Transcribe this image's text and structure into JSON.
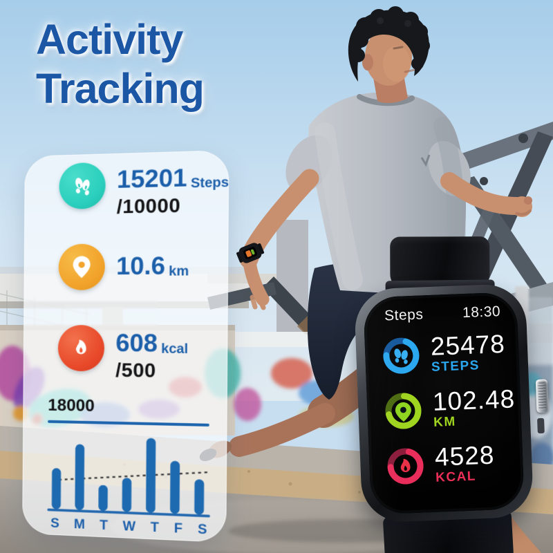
{
  "title": {
    "line1": "Activity",
    "line2": "Tracking",
    "color": "#1b57a5"
  },
  "stats_card": {
    "items": [
      {
        "icon": "footprints-icon",
        "value": "15201",
        "unit": "Steps",
        "sub": "/10000",
        "icon_color": "#2bcfbd"
      },
      {
        "icon": "location-pin-icon",
        "value": "10.6",
        "unit": "km",
        "sub": "",
        "icon_color": "#f2a42c"
      },
      {
        "icon": "flame-icon",
        "value": "608",
        "unit": "kcal",
        "sub": "/500",
        "icon_color": "#e84a2a"
      }
    ],
    "chart_max_label": "18000"
  },
  "chart_data": {
    "type": "bar",
    "categories": [
      "S",
      "M",
      "T",
      "W",
      "T",
      "F",
      "S"
    ],
    "values": [
      8800,
      14100,
      5500,
      7200,
      15800,
      11100,
      7400
    ],
    "title": "",
    "xlabel": "",
    "ylabel": "",
    "ylim": [
      0,
      18000
    ],
    "bar_color": "#1e6ab0",
    "grid": false,
    "annotations": [
      "18000",
      "dashed trend line"
    ]
  },
  "watch": {
    "header": {
      "app": "Steps",
      "time": "18:30"
    },
    "metrics": [
      {
        "icon": "steps-ring-icon",
        "value": "25478",
        "label": "STEPS",
        "color": "#2aa7ef"
      },
      {
        "icon": "distance-ring-icon",
        "value": "102.48",
        "label": "KM",
        "color": "#9fd41f"
      },
      {
        "icon": "calories-ring-icon",
        "value": "4528",
        "label": "KCAL",
        "color": "#ea2e56"
      }
    ]
  },
  "photo_alt": "Man jogging on a road in front of a steel truss bridge and graffiti wall, wearing the smartwatch"
}
